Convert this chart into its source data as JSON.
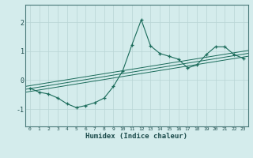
{
  "xlabel": "Humidex (Indice chaleur)",
  "bg_color": "#d4ecec",
  "grid_color": "#b8d4d4",
  "line_color": "#1a6b5a",
  "xlim": [
    -0.5,
    23.5
  ],
  "ylim": [
    -1.6,
    2.6
  ],
  "xticks": [
    0,
    1,
    2,
    3,
    4,
    5,
    6,
    7,
    8,
    9,
    10,
    11,
    12,
    13,
    14,
    15,
    16,
    17,
    18,
    19,
    20,
    21,
    22,
    23
  ],
  "yticks": [
    -1,
    0,
    1,
    2
  ],
  "main_x": [
    0,
    1,
    2,
    3,
    4,
    5,
    6,
    7,
    8,
    9,
    10,
    11,
    12,
    13,
    14,
    15,
    16,
    17,
    18,
    19,
    20,
    21,
    22,
    23
  ],
  "main_y": [
    -0.28,
    -0.42,
    -0.48,
    -0.62,
    -0.82,
    -0.95,
    -0.88,
    -0.78,
    -0.62,
    -0.22,
    0.32,
    1.22,
    2.08,
    1.18,
    0.92,
    0.82,
    0.72,
    0.42,
    0.52,
    0.88,
    1.15,
    1.15,
    0.88,
    0.75
  ],
  "line2_x": [
    -0.5,
    23.5
  ],
  "line2_y": [
    -0.42,
    0.82
  ],
  "line3_x": [
    -0.5,
    23.5
  ],
  "line3_y": [
    -0.32,
    0.92
  ],
  "line4_x": [
    -0.5,
    23.5
  ],
  "line4_y": [
    -0.22,
    1.02
  ]
}
